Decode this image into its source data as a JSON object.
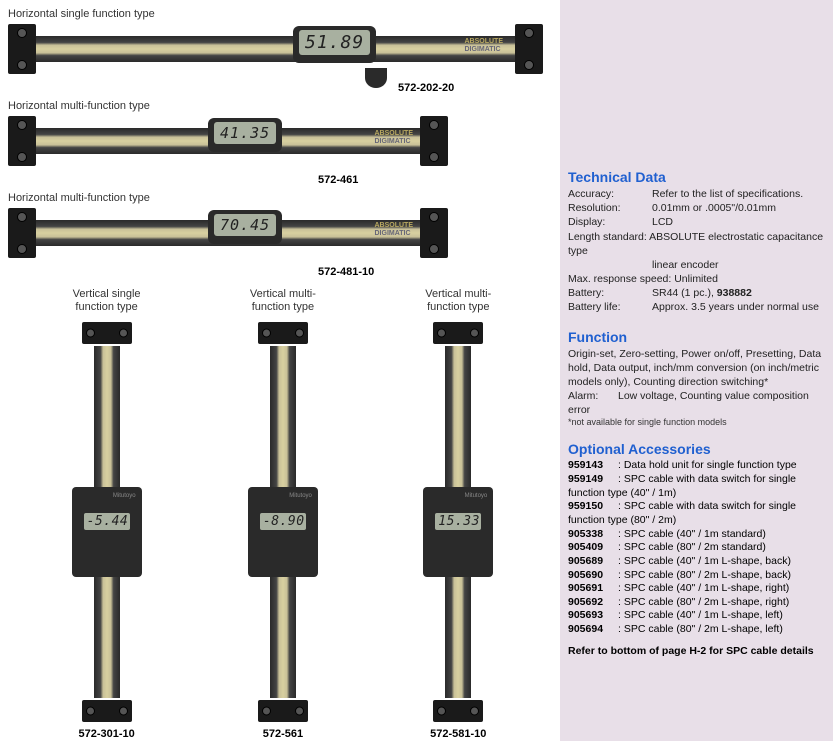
{
  "horizontals": [
    {
      "heading": "Horizontal single function type",
      "lcd": "51.89",
      "model": "572-202-20",
      "brand": "ABSOLUTE",
      "sub": "DIGIMATIC"
    },
    {
      "heading": "Horizontal multi-function type",
      "lcd": "41.35",
      "model": "572-461",
      "brand": "ABSOLUTE",
      "sub": "DIGIMATIC"
    },
    {
      "heading": "Horizontal multi-function type",
      "lcd": "70.45",
      "model": "572-481-10",
      "brand": "ABSOLUTE",
      "sub": "DIGIMATIC"
    }
  ],
  "verticals": [
    {
      "label": "Vertical single\nfunction type",
      "lcd": "-5.44",
      "model": "572-301-10"
    },
    {
      "label": "Vertical multi-\nfunction type",
      "lcd": "-8.90",
      "model": "572-561"
    },
    {
      "label": "Vertical multi-\nfunction type",
      "lcd": "15.33",
      "model": "572-581-10"
    }
  ],
  "tech": {
    "title": "Technical Data",
    "rows": [
      {
        "k": "Accuracy:",
        "v": "Refer to the list of specifications."
      },
      {
        "k": "Resolution:",
        "v": "0.01mm or .0005\"/0.01mm"
      },
      {
        "k": "Display:",
        "v": "LCD"
      }
    ],
    "length_standard": "Length standard: ABSOLUTE electrostatic capacitance type",
    "length_sub": "linear encoder",
    "max_response": "Max. response speed: Unlimited",
    "battery_k": "Battery:",
    "battery_v": "SR44 (1 pc.),",
    "battery_pn": "938882",
    "life_k": "Battery life:",
    "life_v": "Approx. 3.5 years under normal use"
  },
  "func": {
    "title": "Function",
    "body": "Origin-set, Zero-setting, Power on/off, Presetting, Data hold, Data output, inch/mm conversion (on inch/metric models only), Counting direction switching*",
    "alarm_k": "Alarm:",
    "alarm_v": "Low voltage, Counting value composition error",
    "note": "*not available for single function models"
  },
  "acc": {
    "title": "Optional Accessories",
    "rows": [
      {
        "no": "959143",
        "d": "Data hold unit for single function type"
      },
      {
        "no": "959149",
        "d": "SPC cable with data switch for single function type (40\" / 1m)"
      },
      {
        "no": "959150",
        "d": "SPC cable with data switch for single function type (80\" / 2m)"
      },
      {
        "no": "905338",
        "d": "SPC cable (40\" / 1m standard)"
      },
      {
        "no": "905409",
        "d": "SPC cable (80\" / 2m standard)"
      },
      {
        "no": "905689",
        "d": "SPC cable (40\" / 1m L-shape, back)"
      },
      {
        "no": "905690",
        "d": "SPC cable (80\" / 2m L-shape, back)"
      },
      {
        "no": "905691",
        "d": "SPC cable (40\" / 1m L-shape, right)"
      },
      {
        "no": "905692",
        "d": "SPC cable (80\" / 2m L-shape, right)"
      },
      {
        "no": "905693",
        "d": "SPC cable (40\" / 1m L-shape, left)"
      },
      {
        "no": "905694",
        "d": "SPC cable (80\" / 2m L-shape, left)"
      }
    ],
    "refer": "Refer to bottom of page H-2 for SPC cable details"
  }
}
